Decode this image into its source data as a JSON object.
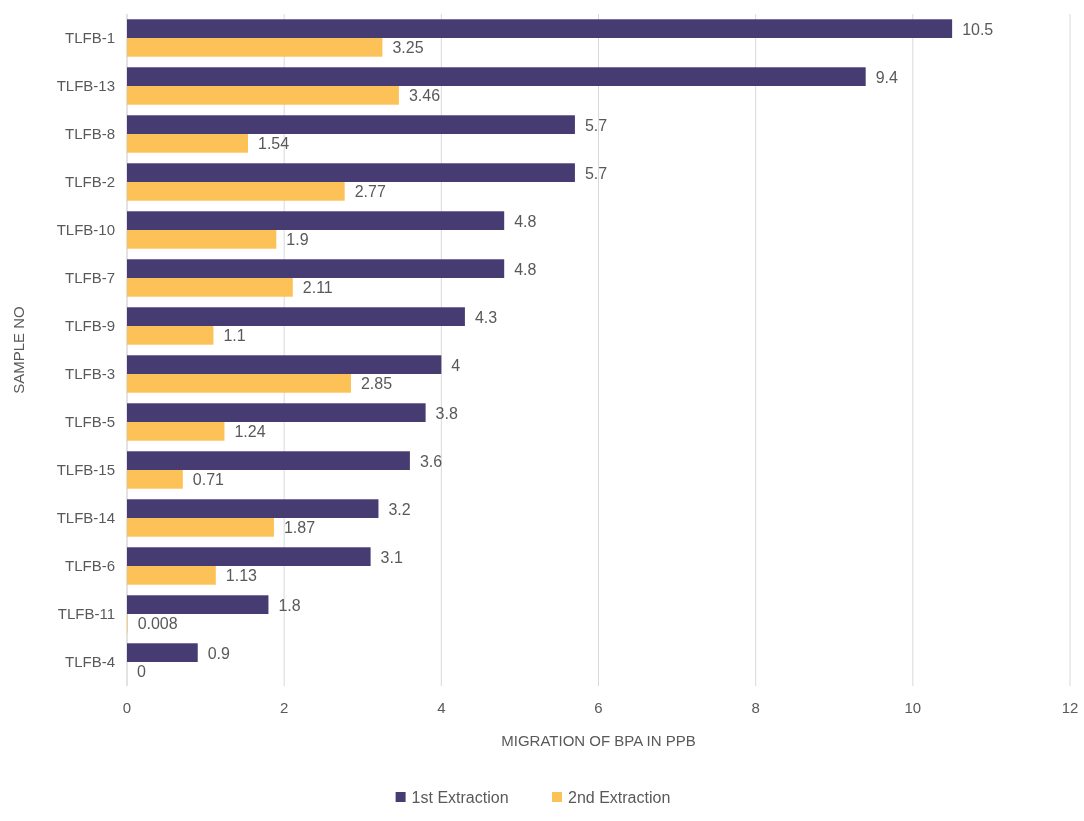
{
  "chart_data": {
    "type": "bar",
    "orientation": "horizontal",
    "xlabel": "MIGRATION OF BPA IN PPB",
    "ylabel": "SAMPLE NO",
    "categories": [
      "TLFB-1",
      "TLFB-13",
      "TLFB-8",
      "TLFB-2",
      "TLFB-10",
      "TLFB-7",
      "TLFB-9",
      "TLFB-3",
      "TLFB-5",
      "TLFB-15",
      "TLFB-14",
      "TLFB-6",
      "TLFB-11",
      "TLFB-4"
    ],
    "series": [
      {
        "name": "1st Extraction",
        "color": "#463c72",
        "values": [
          10.5,
          9.4,
          5.7,
          5.7,
          4.8,
          4.8,
          4.3,
          4,
          3.8,
          3.6,
          3.2,
          3.1,
          1.8,
          0.9
        ]
      },
      {
        "name": "2nd Extraction",
        "color": "#fcc257",
        "values": [
          3.25,
          3.46,
          1.54,
          2.77,
          1.9,
          2.11,
          1.1,
          2.85,
          1.24,
          0.71,
          1.87,
          1.13,
          0.008,
          0
        ]
      }
    ],
    "xlim": [
      0,
      12
    ],
    "xticks": [
      0,
      2,
      4,
      6,
      8,
      10,
      12
    ],
    "grid": "x",
    "legend": "bottom",
    "data_labels": true
  }
}
